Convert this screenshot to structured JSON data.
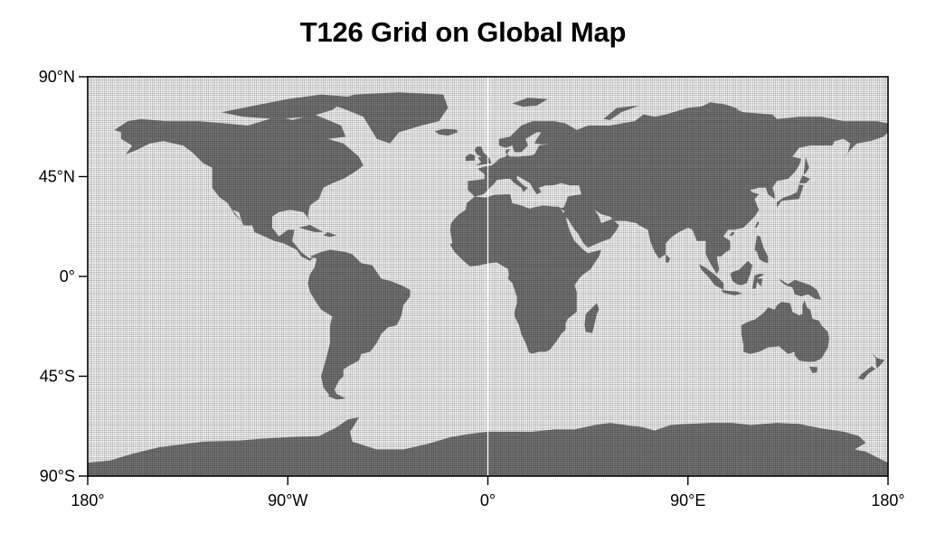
{
  "title": "T126 Grid on Global Map",
  "map": {
    "projection": "equirectangular",
    "lon_range": [
      -180,
      180
    ],
    "lat_range": [
      -90,
      90
    ],
    "grid": {
      "name": "T126",
      "nlon": 384,
      "nlat": 192
    },
    "colors": {
      "background": "#ffffff",
      "land": "#7a7a7a",
      "grid_lines": "#000000",
      "frame": "#000000"
    },
    "lat_ticks": [
      {
        "value": 90,
        "label": "90°N"
      },
      {
        "value": 45,
        "label": "45°N"
      },
      {
        "value": 0,
        "label": "0°"
      },
      {
        "value": -45,
        "label": "45°S"
      },
      {
        "value": -90,
        "label": "90°S"
      }
    ],
    "lon_ticks": [
      {
        "value": -180,
        "label": "180°"
      },
      {
        "value": -90,
        "label": "90°W"
      },
      {
        "value": 0,
        "label": "0°"
      },
      {
        "value": 90,
        "label": "90°E"
      },
      {
        "value": 180,
        "label": "180°"
      }
    ]
  }
}
